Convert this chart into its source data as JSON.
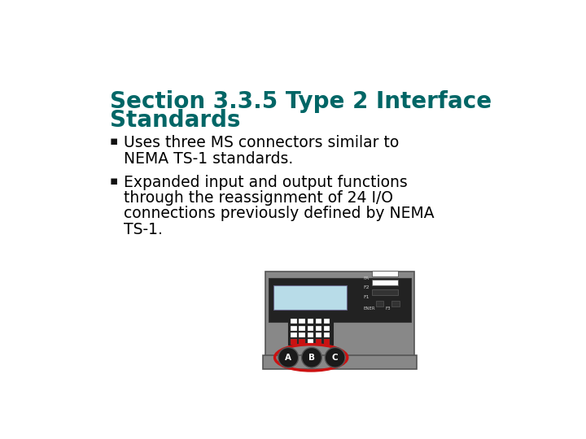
{
  "bg_color": "#ffffff",
  "title_line1": "Section 3.3.5 Type 2 Interface",
  "title_line2": "Standards",
  "title_color": "#006666",
  "title_fontsize": 20,
  "bullet1_line1": "Uses three MS connectors similar to",
  "bullet1_line2": "NEMA TS-1 standards.",
  "bullet2_line1": "Expanded input and output functions",
  "bullet2_line2": "through the reassignment of 24 I/O",
  "bullet2_line3": "connections previously defined by NEMA",
  "bullet2_line4": "TS-1.",
  "bullet_color": "#000000",
  "bullet_fontsize": 13.5,
  "device_gray": "#888888",
  "device_dark_gray": "#555555",
  "device_bezel": "#222222",
  "lcd_color": "#b8dce8",
  "red_color": "#cc1111"
}
